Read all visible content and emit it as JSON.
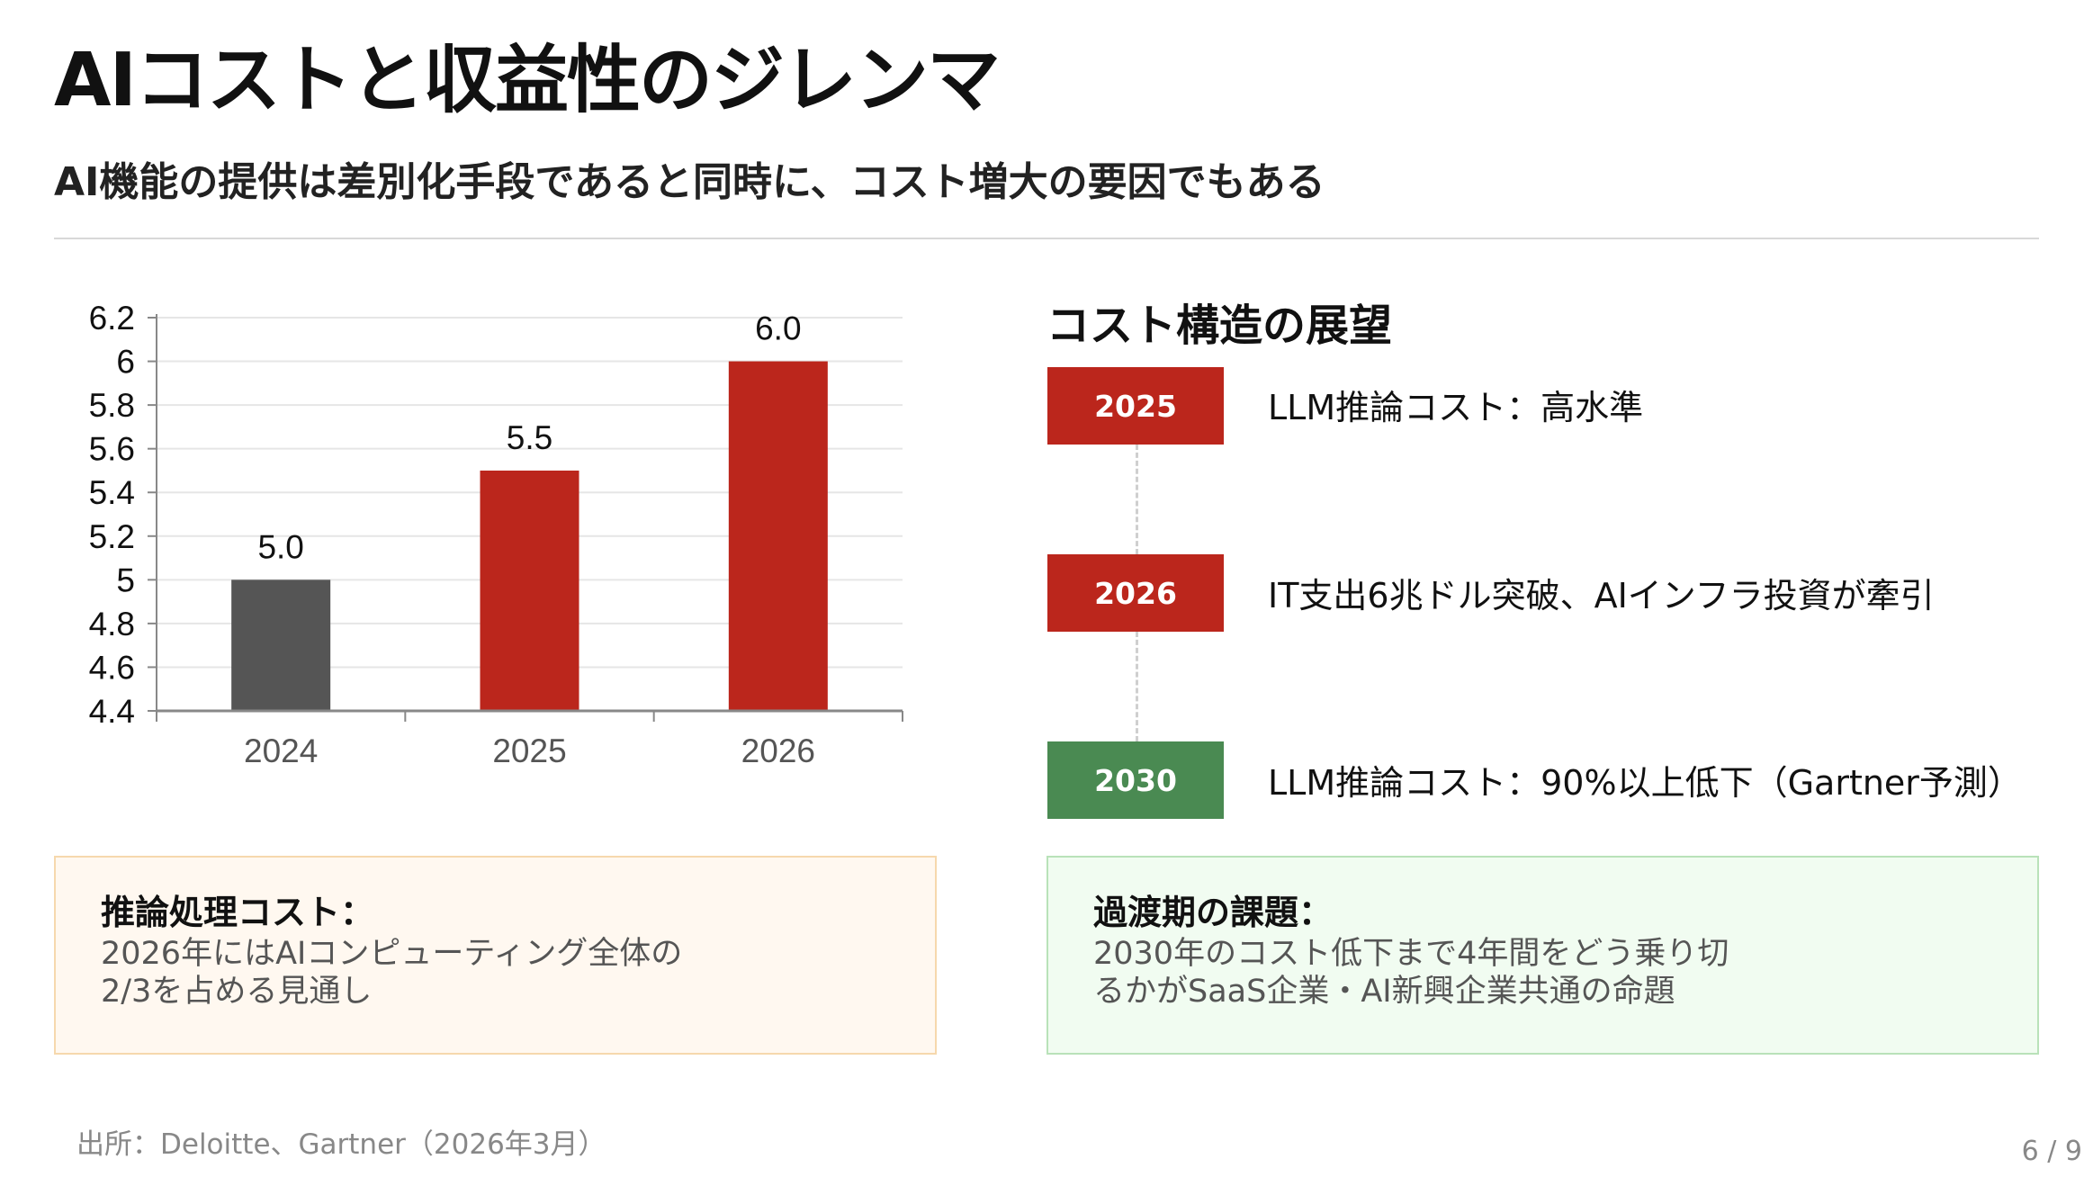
{
  "title": "AIコストと収益性のジレンマ",
  "subtitle": "AI機能の提供は差別化手段であると同時に、コスト増大の要因でもある",
  "chart_data": {
    "type": "bar",
    "categories": [
      "2024",
      "2025",
      "2026"
    ],
    "values": [
      5.0,
      5.5,
      6.0
    ],
    "data_labels": [
      "5.0",
      "5.5",
      "6.0"
    ],
    "bar_colors": [
      "#555555",
      "#bb261c",
      "#bb261c"
    ],
    "ylim": [
      4.4,
      6.2
    ],
    "yticks": [
      "4.4",
      "4.6",
      "4.8",
      "5",
      "5.2",
      "5.4",
      "5.6",
      "5.8",
      "6",
      "6.2"
    ],
    "grid": true,
    "title": "",
    "xlabel": "",
    "ylabel": ""
  },
  "outlook": {
    "heading": "コスト構造の展望",
    "items": [
      {
        "year": "2025",
        "text": "LLM推論コスト：高水準",
        "color": "#bb261c"
      },
      {
        "year": "2026",
        "text": "IT支出6兆ドル突破、AIインフラ投資が牽引",
        "color": "#bb261c"
      },
      {
        "year": "2030",
        "text": "LLM推論コスト：90%以上低下（Gartner予測）",
        "color": "#4a8a52"
      }
    ]
  },
  "notes": [
    {
      "heading": "推論処理コスト：",
      "lines": [
        "2026年にはAIコンピューティング全体の",
        "2/3を占める見通し"
      ]
    },
    {
      "heading": "過渡期の課題：",
      "lines": [
        "2030年のコスト低下まで4年間をどう乗り切",
        "るかがSaaS企業・AI新興企業共通の命題"
      ]
    }
  ],
  "source": "出所：Deloitte、Gartner（2026年3月）",
  "page_number": "6 / 9"
}
